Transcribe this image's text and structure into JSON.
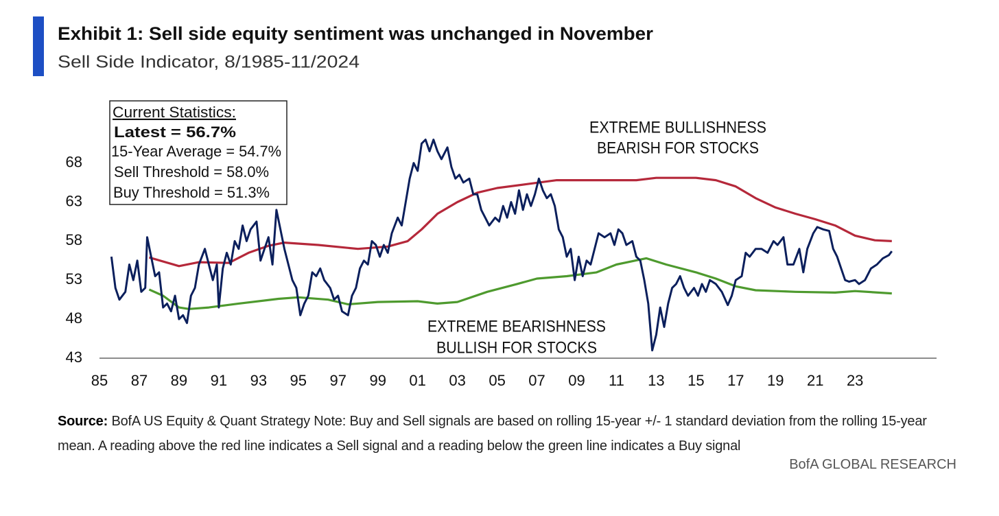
{
  "chart_data": {
    "type": "line",
    "title": "Exhibit 1: Sell side equity sentiment was unchanged in November",
    "subtitle": "Sell Side Indicator, 8/1985-11/2024",
    "stats_title": "Current Statistics:",
    "stats_latest": "Latest = 56.7%",
    "stats": [
      "15-Year Average = 54.7%",
      "Sell Threshold = 58.0%",
      "Buy Threshold = 51.3%"
    ],
    "annotation_top": [
      "EXTREME BULLISHNESS",
      "BEARISH FOR STOCKS"
    ],
    "annotation_bottom": [
      "EXTREME BEARISHNESS",
      "BULLISH FOR STOCKS"
    ],
    "source_label": "Source:",
    "source": "BofA US Equity & Quant Strategy Note: Buy and Sell signals are based on rolling 15-year +/- 1 standard deviation from the rolling 15-year mean. A reading above the red line indicates a Sell signal and a reading below the green line indicates a Buy signal",
    "branding": "BofA GLOBAL RESEARCH",
    "xlim": [
      1985,
      2027.1
    ],
    "ylim": [
      43,
      72.5
    ],
    "yticks": [
      43,
      48,
      53,
      58,
      63,
      68
    ],
    "xticks": [
      {
        "value": 1985,
        "label": "85"
      },
      {
        "value": 1987,
        "label": "87"
      },
      {
        "value": 1989,
        "label": "89"
      },
      {
        "value": 1991,
        "label": "91"
      },
      {
        "value": 1993,
        "label": "93"
      },
      {
        "value": 1995,
        "label": "95"
      },
      {
        "value": 1997,
        "label": "97"
      },
      {
        "value": 1999,
        "label": "99"
      },
      {
        "value": 2001,
        "label": "01"
      },
      {
        "value": 2003,
        "label": "03"
      },
      {
        "value": 2005,
        "label": "05"
      },
      {
        "value": 2007,
        "label": "07"
      },
      {
        "value": 2009,
        "label": "09"
      },
      {
        "value": 2011,
        "label": "11"
      },
      {
        "value": 2013,
        "label": "13"
      },
      {
        "value": 2015,
        "label": "15"
      },
      {
        "value": 2017,
        "label": "17"
      },
      {
        "value": 2019,
        "label": "19"
      },
      {
        "value": 2021,
        "label": "21"
      },
      {
        "value": 2023,
        "label": "23"
      }
    ],
    "grid": false,
    "series": [
      {
        "color": "#0b1f5c",
        "x": [
          1985.6,
          1985.8,
          1986.0,
          1986.3,
          1986.5,
          1986.7,
          1986.9,
          1987.1,
          1987.3,
          1987.4,
          1987.6,
          1987.8,
          1988.0,
          1988.2,
          1988.4,
          1988.6,
          1988.8,
          1989.0,
          1989.2,
          1989.4,
          1989.6,
          1989.8,
          1990.0,
          1990.3,
          1990.5,
          1990.7,
          1990.9,
          1991.0,
          1991.2,
          1991.4,
          1991.6,
          1991.8,
          1992.0,
          1992.2,
          1992.4,
          1992.6,
          1992.9,
          1993.1,
          1993.3,
          1993.5,
          1993.7,
          1993.9,
          1994.1,
          1994.3,
          1994.5,
          1994.7,
          1994.9,
          1995.1,
          1995.3,
          1995.5,
          1995.7,
          1995.9,
          1996.1,
          1996.3,
          1996.6,
          1996.8,
          1997.0,
          1997.2,
          1997.5,
          1997.7,
          1997.9,
          1998.1,
          1998.3,
          1998.5,
          1998.7,
          1998.9,
          1999.1,
          1999.3,
          1999.5,
          1999.7,
          2000.0,
          2000.2,
          2000.4,
          2000.6,
          2000.8,
          2001.0,
          2001.2,
          2001.4,
          2001.6,
          2001.8,
          2002.0,
          2002.2,
          2002.5,
          2002.7,
          2002.9,
          2003.1,
          2003.3,
          2003.6,
          2003.8,
          2004.0,
          2004.2,
          2004.4,
          2004.6,
          2004.9,
          2005.1,
          2005.3,
          2005.5,
          2005.7,
          2005.9,
          2006.1,
          2006.3,
          2006.5,
          2006.7,
          2006.9,
          2007.1,
          2007.3,
          2007.5,
          2007.7,
          2007.9,
          2008.1,
          2008.3,
          2008.5,
          2008.7,
          2008.9,
          2009.1,
          2009.3,
          2009.5,
          2009.7,
          2009.9,
          2010.1,
          2010.4,
          2010.7,
          2010.9,
          2011.1,
          2011.3,
          2011.5,
          2011.8,
          2012.0,
          2012.2,
          2012.4,
          2012.6,
          2012.8,
          2013.0,
          2013.2,
          2013.4,
          2013.6,
          2013.8,
          2014.0,
          2014.2,
          2014.4,
          2014.6,
          2014.9,
          2015.1,
          2015.3,
          2015.5,
          2015.7,
          2016.0,
          2016.3,
          2016.6,
          2016.8,
          2017.0,
          2017.3,
          2017.5,
          2017.7,
          2018.0,
          2018.3,
          2018.6,
          2018.9,
          2019.1,
          2019.4,
          2019.6,
          2019.9,
          2020.2,
          2020.4,
          2020.6,
          2020.9,
          2021.1,
          2021.4,
          2021.7,
          2021.9,
          2022.1,
          2022.3,
          2022.5,
          2022.7,
          2023.0,
          2023.2,
          2023.5,
          2023.8,
          2024.1,
          2024.4,
          2024.7,
          2024.85
        ],
        "values": [
          56,
          52,
          50.5,
          51.5,
          55,
          53,
          55.5,
          51.5,
          52,
          58.5,
          56,
          53.5,
          54,
          49.5,
          50,
          49,
          51,
          48,
          48.5,
          47.5,
          51,
          52,
          55,
          57,
          55,
          53,
          55,
          49.5,
          54.5,
          56.5,
          55,
          58,
          57,
          60,
          58,
          59.5,
          60.5,
          55.5,
          57,
          58.5,
          55,
          62,
          59.5,
          57,
          55,
          53,
          52,
          48.5,
          50,
          51,
          54,
          53.5,
          54.5,
          53,
          52,
          50.5,
          51,
          49,
          48.5,
          51,
          52,
          54.5,
          55.5,
          55,
          58,
          57.5,
          56,
          57.5,
          56.5,
          59,
          61,
          60,
          63,
          66,
          68,
          67,
          70.5,
          71,
          69.5,
          71,
          69.5,
          68.5,
          70,
          67.5,
          66,
          66.5,
          65.5,
          66,
          64,
          64,
          62,
          61,
          60,
          61,
          60.5,
          62.5,
          61,
          63,
          61.5,
          64.5,
          62,
          64,
          62.5,
          64,
          66,
          64.5,
          63.5,
          64,
          62.5,
          59.5,
          58.5,
          56,
          57,
          53,
          56,
          53.5,
          55.5,
          55,
          57,
          59,
          58.5,
          59,
          57.5,
          59.5,
          59,
          57.5,
          58,
          56,
          55.5,
          53,
          50,
          44,
          46,
          49.5,
          47,
          50,
          52,
          52.5,
          53.5,
          52,
          51,
          52,
          51,
          52.5,
          51.5,
          53,
          52.5,
          51.5,
          49.8,
          51,
          53,
          53.5,
          56.5,
          56,
          57,
          57,
          56.5,
          58,
          57.5,
          58.5,
          55,
          55,
          57,
          54,
          57,
          59,
          59.8,
          59.5,
          59.3,
          57,
          56,
          54.5,
          53,
          52.8,
          53,
          52.5,
          53,
          54.5,
          55,
          55.8,
          56.2,
          56.7
        ]
      },
      {
        "color": "#b5283a",
        "x": [
          1987.5,
          1989.0,
          1990.0,
          1991.5,
          1992.5,
          1993.5,
          1994.3,
          1996.0,
          1998.0,
          1999.5,
          2000.5,
          2001.2,
          2002.0,
          2003.0,
          2004.0,
          2005.0,
          2006.5,
          2008.0,
          2010.0,
          2012.0,
          2013.0,
          2015.0,
          2016.0,
          2017.0,
          2018.0,
          2019.0,
          2020.0,
          2021.0,
          2022.0,
          2023.0,
          2024.0,
          2024.85
        ],
        "values": [
          55.9,
          54.8,
          55.3,
          55.2,
          56.5,
          57.4,
          57.8,
          57.5,
          57,
          57.3,
          58,
          59.5,
          61.5,
          63,
          64.2,
          64.8,
          65.3,
          65.8,
          65.8,
          65.8,
          66.1,
          66.1,
          65.8,
          65,
          63.5,
          62.3,
          61.5,
          60.8,
          60,
          58.7,
          58.1,
          58.0
        ]
      },
      {
        "color": "#4e9a2e",
        "x": [
          1987.5,
          1988.2,
          1989.0,
          1989.5,
          1990.5,
          1992.0,
          1994.0,
          1995.0,
          1996.5,
          1997.5,
          1999.0,
          2001.0,
          2002.0,
          2003.0,
          2004.5,
          2006.0,
          2007.0,
          2008.5,
          2010.0,
          2011.0,
          2012.5,
          2013.5,
          2015.0,
          2016.0,
          2017.0,
          2018.0,
          2020.0,
          2022.0,
          2023.0,
          2024.85
        ],
        "values": [
          51.8,
          51,
          49.5,
          49.3,
          49.5,
          50,
          50.6,
          50.8,
          50.5,
          49.9,
          50.2,
          50.3,
          50,
          50.2,
          51.5,
          52.5,
          53.2,
          53.5,
          54,
          55,
          55.8,
          55,
          54,
          53.2,
          52.2,
          51.7,
          51.5,
          51.4,
          51.6,
          51.3
        ]
      }
    ]
  }
}
